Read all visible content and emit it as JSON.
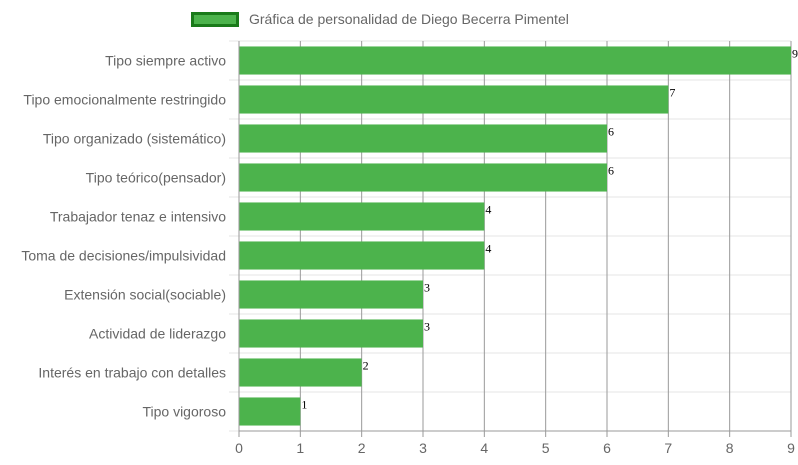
{
  "chart_data": {
    "type": "bar",
    "orientation": "horizontal",
    "categories": [
      "Tipo siempre activo",
      "Tipo emocionalmente restringido",
      "Tipo organizado (sistemático)",
      "Tipo teórico(pensador)",
      "Trabajador tenaz e intensivo",
      "Toma de decisiones/impulsividad",
      "Extensión social(sociable)",
      "Actividad de liderazgo",
      "Interés en trabajo con detalles",
      "Tipo vigoroso"
    ],
    "series": [
      {
        "name": "Gráfica de personalidad de Diego Becerra Pimentel",
        "values": [
          9,
          7,
          6,
          6,
          4,
          4,
          3,
          3,
          2,
          1
        ]
      }
    ],
    "xlim": [
      0,
      9
    ],
    "xticks": [
      "0",
      "1",
      "2",
      "3",
      "4",
      "5",
      "6",
      "7",
      "8",
      "9"
    ],
    "grid": true,
    "legend_position": "top",
    "data_labels": true,
    "colors": {
      "bar_fill": "#4cb34c",
      "legend_border": "#1a7a1a",
      "grid_vertical": "#999999",
      "grid_horizontal": "#e6e6e6"
    }
  }
}
